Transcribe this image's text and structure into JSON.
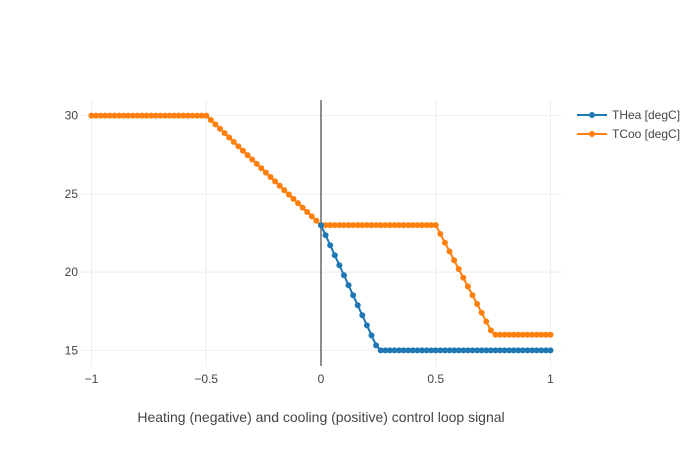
{
  "chart_data": {
    "type": "line",
    "title": "",
    "xlabel": "Heating (negative) and cooling (positive) control loop signal",
    "ylabel": "",
    "xlim": [
      -1.05,
      1.05
    ],
    "ylim": [
      14,
      31
    ],
    "x_ticks": [
      -1,
      -0.5,
      0,
      0.5,
      1
    ],
    "x_tick_labels": [
      "−1",
      "−0.5",
      "0",
      "0.5",
      "1"
    ],
    "y_ticks": [
      15,
      20,
      25,
      30
    ],
    "y_tick_labels": [
      "15",
      "20",
      "25",
      "30"
    ],
    "grid": true,
    "zero_line_x": 0,
    "legend_position": "top-right",
    "x_sampling": {
      "start": -1,
      "stop": 1,
      "step": 0.02
    },
    "series": [
      {
        "name": "THea [degC]",
        "color": "#1f77b4",
        "knots": [
          [
            -1,
            30
          ],
          [
            -0.5,
            30
          ],
          [
            0,
            23
          ],
          [
            0.25,
            15
          ],
          [
            1,
            15
          ]
        ],
        "visible_x_range": [
          0,
          1
        ]
      },
      {
        "name": "TCoo [degC]",
        "color": "#ff7f0e",
        "knots": [
          [
            -1,
            30
          ],
          [
            -0.5,
            30
          ],
          [
            0,
            23
          ],
          [
            0.5,
            23
          ],
          [
            0.75,
            16
          ],
          [
            1,
            16
          ]
        ],
        "visible_x_range": [
          -1,
          1
        ]
      }
    ]
  }
}
